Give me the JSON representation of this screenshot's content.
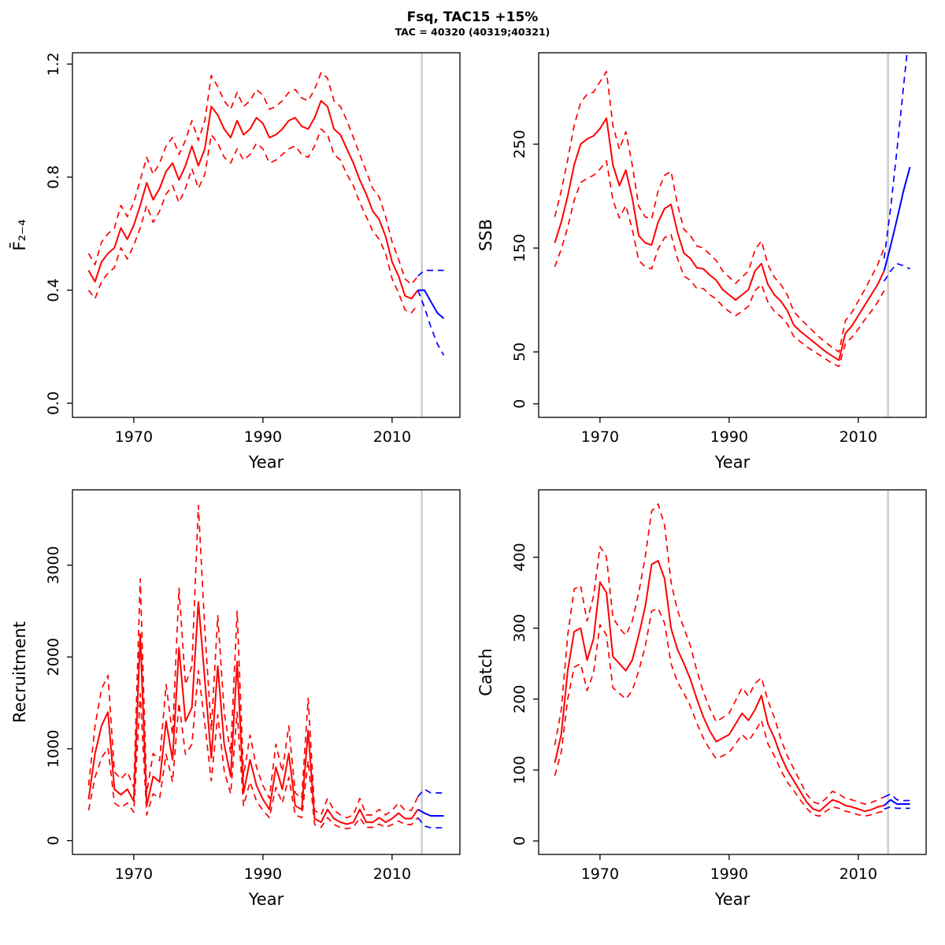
{
  "title": "Fsq, TAC15 +15%",
  "subtitle": "TAC = 40320 (40319;40321)",
  "colors": {
    "historical": "#FF0000",
    "projection": "#0000FF",
    "divider": "#CFCFCF",
    "axis": "#000000",
    "background": "#FFFFFF"
  },
  "chart_data": [
    {
      "id": "fbar",
      "type": "line",
      "title": "",
      "xlabel": "Year",
      "ylabel": "F̄₂₋₄",
      "xlim": [
        1960.5,
        2020.5
      ],
      "ylim": [
        -0.05,
        1.24
      ],
      "xticks": [
        1970,
        1990,
        2010
      ],
      "yticks": [
        0,
        0.4,
        0.8,
        1.2
      ],
      "ytick_labels": [
        "0.0",
        "0.4",
        "0.8",
        "1.2"
      ],
      "forecast_divider_year": 2014.6,
      "historical": {
        "start_year": 1963,
        "estimate": [
          0.47,
          0.43,
          0.5,
          0.53,
          0.55,
          0.62,
          0.58,
          0.63,
          0.7,
          0.78,
          0.72,
          0.76,
          0.82,
          0.85,
          0.79,
          0.84,
          0.91,
          0.84,
          0.9,
          1.05,
          1.02,
          0.97,
          0.94,
          1.0,
          0.95,
          0.97,
          1.01,
          0.99,
          0.94,
          0.95,
          0.97,
          1.0,
          1.01,
          0.98,
          0.97,
          1.01,
          1.07,
          1.05,
          0.97,
          0.95,
          0.9,
          0.85,
          0.79,
          0.74,
          0.68,
          0.65,
          0.59,
          0.5,
          0.45,
          0.38,
          0.37,
          0.4
        ],
        "upper": [
          0.53,
          0.49,
          0.57,
          0.6,
          0.62,
          0.7,
          0.66,
          0.71,
          0.79,
          0.87,
          0.81,
          0.85,
          0.91,
          0.94,
          0.88,
          0.93,
          1.0,
          0.93,
          1.0,
          1.16,
          1.12,
          1.07,
          1.04,
          1.1,
          1.05,
          1.07,
          1.11,
          1.09,
          1.04,
          1.05,
          1.07,
          1.1,
          1.11,
          1.08,
          1.07,
          1.11,
          1.17,
          1.15,
          1.07,
          1.05,
          1.0,
          0.94,
          0.88,
          0.82,
          0.76,
          0.73,
          0.66,
          0.57,
          0.51,
          0.44,
          0.42,
          0.45
        ],
        "lower": [
          0.4,
          0.37,
          0.43,
          0.46,
          0.48,
          0.55,
          0.51,
          0.56,
          0.62,
          0.7,
          0.64,
          0.68,
          0.74,
          0.77,
          0.71,
          0.76,
          0.83,
          0.76,
          0.81,
          0.95,
          0.92,
          0.87,
          0.85,
          0.9,
          0.86,
          0.88,
          0.92,
          0.9,
          0.85,
          0.86,
          0.88,
          0.9,
          0.91,
          0.88,
          0.87,
          0.91,
          0.97,
          0.95,
          0.88,
          0.86,
          0.81,
          0.77,
          0.71,
          0.66,
          0.61,
          0.58,
          0.53,
          0.44,
          0.39,
          0.33,
          0.32,
          0.35
        ]
      },
      "projection": {
        "start_year": 2014,
        "estimate": [
          0.4,
          0.4,
          0.36,
          0.32,
          0.3
        ],
        "upper": [
          0.45,
          0.47,
          0.47,
          0.47,
          0.47
        ],
        "lower": [
          0.4,
          0.34,
          0.27,
          0.21,
          0.17
        ]
      }
    },
    {
      "id": "ssb",
      "type": "line",
      "title": "",
      "xlabel": "Year",
      "ylabel": "SSB",
      "xlim": [
        1960.5,
        2020.5
      ],
      "ylim": [
        -13,
        338
      ],
      "xticks": [
        1970,
        1990,
        2010
      ],
      "yticks": [
        0,
        50,
        150,
        250
      ],
      "ytick_labels": [
        "0",
        "50",
        "150",
        "250"
      ],
      "forecast_divider_year": 2014.6,
      "historical": {
        "start_year": 1963,
        "estimate": [
          155,
          175,
          200,
          230,
          250,
          255,
          258,
          265,
          275,
          230,
          210,
          225,
          198,
          162,
          155,
          153,
          175,
          188,
          192,
          165,
          145,
          140,
          131,
          130,
          124,
          119,
          110,
          105,
          100,
          105,
          110,
          128,
          135,
          115,
          105,
          99,
          90,
          76,
          70,
          65,
          60,
          55,
          50,
          46,
          42,
          68,
          75,
          85,
          95,
          105,
          115,
          128
        ],
        "upper": [
          180,
          205,
          235,
          268,
          290,
          298,
          300,
          310,
          320,
          268,
          245,
          262,
          230,
          190,
          180,
          178,
          205,
          220,
          224,
          192,
          168,
          162,
          152,
          150,
          144,
          138,
          128,
          122,
          116,
          122,
          128,
          148,
          157,
          134,
          122,
          115,
          105,
          89,
          82,
          76,
          70,
          64,
          59,
          54,
          50,
          80,
          88,
          99,
          110,
          122,
          134,
          150
        ],
        "lower": [
          132,
          149,
          170,
          196,
          213,
          217,
          220,
          226,
          234,
          196,
          179,
          191,
          168,
          138,
          132,
          130,
          149,
          160,
          163,
          140,
          123,
          119,
          111,
          111,
          105,
          101,
          94,
          89,
          85,
          89,
          94,
          109,
          115,
          98,
          89,
          84,
          77,
          65,
          60,
          55,
          51,
          47,
          43,
          39,
          36,
          58,
          64,
          72,
          81,
          89,
          98,
          109
        ]
      },
      "projection": {
        "start_year": 2014,
        "estimate": [
          128,
          152,
          178,
          205,
          228
        ],
        "upper": [
          140,
          188,
          245,
          305,
          365
        ],
        "lower": [
          118,
          128,
          135,
          133,
          130
        ]
      }
    },
    {
      "id": "recruitment",
      "type": "line",
      "title": "",
      "xlabel": "Year",
      "ylabel": "Recruitment",
      "xlim": [
        1960.5,
        2020.5
      ],
      "ylim": [
        -150,
        3820
      ],
      "xticks": [
        1970,
        1990,
        2010
      ],
      "yticks": [
        0,
        1000,
        2000,
        3000
      ],
      "ytick_labels": [
        "0",
        "1000",
        "2000",
        "3000"
      ],
      "forecast_divider_year": 2014.6,
      "historical": {
        "start_year": 1963,
        "estimate": [
          450,
          950,
          1250,
          1400,
          560,
          500,
          560,
          430,
          2250,
          380,
          700,
          640,
          1300,
          880,
          2100,
          1300,
          1450,
          2600,
          1750,
          900,
          1900,
          1050,
          700,
          1950,
          520,
          880,
          600,
          450,
          340,
          800,
          560,
          950,
          380,
          340,
          1200,
          240,
          200,
          340,
          240,
          200,
          180,
          200,
          340,
          200,
          200,
          250,
          200,
          240,
          300,
          240,
          240,
          340
        ],
        "upper": [
          600,
          1250,
          1650,
          1800,
          750,
          670,
          750,
          580,
          2850,
          520,
          950,
          870,
          1700,
          1150,
          2750,
          1700,
          1900,
          3650,
          2300,
          1200,
          2450,
          1400,
          950,
          2500,
          700,
          1150,
          800,
          600,
          460,
          1050,
          750,
          1250,
          520,
          460,
          1550,
          330,
          280,
          460,
          330,
          280,
          250,
          280,
          460,
          280,
          280,
          340,
          280,
          330,
          410,
          330,
          330,
          480
        ],
        "lower": [
          330,
          690,
          900,
          1010,
          410,
          360,
          410,
          310,
          1600,
          280,
          510,
          460,
          940,
          640,
          1500,
          940,
          1050,
          1850,
          1270,
          650,
          1370,
          760,
          510,
          1400,
          380,
          640,
          430,
          330,
          250,
          580,
          410,
          690,
          280,
          250,
          870,
          175,
          145,
          250,
          175,
          145,
          130,
          145,
          250,
          145,
          145,
          180,
          145,
          175,
          215,
          175,
          175,
          250
        ]
      },
      "projection": {
        "start_year": 2014,
        "estimate": [
          340,
          300,
          270,
          270,
          270
        ],
        "upper": [
          480,
          560,
          520,
          520,
          520
        ],
        "lower": [
          250,
          160,
          140,
          140,
          140
        ]
      }
    },
    {
      "id": "catch",
      "type": "line",
      "title": "",
      "xlabel": "Year",
      "ylabel": "Catch",
      "xlim": [
        1960.5,
        2020.5
      ],
      "ylim": [
        -19,
        495
      ],
      "xticks": [
        1970,
        1990,
        2010
      ],
      "yticks": [
        0,
        100,
        200,
        300,
        400
      ],
      "ytick_labels": [
        "0",
        "100",
        "200",
        "300",
        "400"
      ],
      "forecast_divider_year": 2014.6,
      "historical": {
        "start_year": 1963,
        "estimate": [
          110,
          150,
          240,
          295,
          300,
          255,
          285,
          365,
          350,
          260,
          250,
          240,
          255,
          290,
          330,
          390,
          395,
          370,
          300,
          270,
          250,
          228,
          200,
          175,
          155,
          140,
          145,
          150,
          165,
          180,
          170,
          185,
          205,
          165,
          145,
          120,
          100,
          85,
          70,
          55,
          45,
          42,
          50,
          58,
          55,
          50,
          48,
          45,
          42,
          44,
          48,
          50
        ],
        "upper": [
          135,
          185,
          290,
          355,
          360,
          310,
          345,
          415,
          400,
          315,
          300,
          290,
          310,
          350,
          400,
          465,
          475,
          445,
          365,
          325,
          300,
          275,
          240,
          210,
          187,
          168,
          174,
          180,
          198,
          216,
          204,
          222,
          230,
          198,
          174,
          144,
          120,
          102,
          84,
          66,
          55,
          52,
          60,
          70,
          66,
          60,
          58,
          55,
          52,
          54,
          58,
          62
        ],
        "lower": [
          92,
          125,
          200,
          245,
          250,
          212,
          237,
          305,
          290,
          216,
          208,
          200,
          212,
          240,
          274,
          324,
          328,
          307,
          250,
          224,
          208,
          190,
          166,
          145,
          129,
          116,
          120,
          125,
          137,
          150,
          141,
          154,
          170,
          137,
          120,
          100,
          83,
          71,
          58,
          46,
          37,
          35,
          42,
          48,
          46,
          42,
          40,
          37,
          35,
          37,
          40,
          42
        ]
      },
      "projection": {
        "start_year": 2014,
        "estimate": [
          50,
          58,
          52,
          52,
          52
        ],
        "upper": [
          62,
          66,
          58,
          57,
          57
        ],
        "lower": [
          45,
          48,
          46,
          46,
          46
        ]
      }
    }
  ]
}
